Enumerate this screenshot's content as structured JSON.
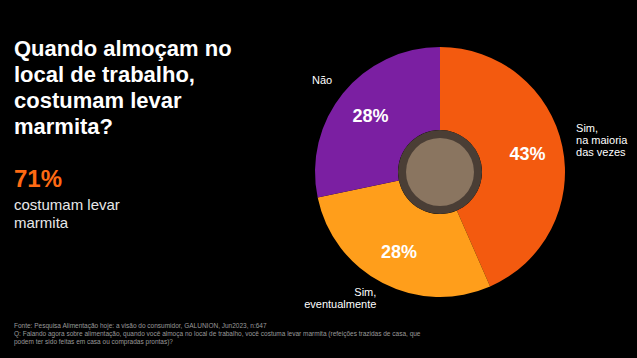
{
  "chart_data": {
    "type": "pie",
    "title": "Quando almoçam no local de trabalho, costumam levar marmita?",
    "categories": [
      "Sim, na maioria das vezes",
      "Sim, eventualmente",
      "Não"
    ],
    "values": [
      43,
      28,
      28
    ],
    "value_labels": [
      "43%",
      "28%",
      "28%"
    ],
    "colors": [
      "#f35a0f",
      "#ff9e1b",
      "#7b1fa2"
    ],
    "data_labels": true,
    "annotations": [
      {
        "value": 71,
        "label": "71%",
        "text": "costumam levar marmita"
      }
    ],
    "notes": [
      "Fonte: Pesquisa Alimentação hoje: a visão do consumidor, GALUNION, Jun2023, n:647",
      "Q: Falando agora sobre alimentação, quando você almoça no local de trabalho, você costuma levar marmita (refeições trazidas de casa, que podem ter sido feitas em casa ou compradas prontas)?"
    ]
  }
}
